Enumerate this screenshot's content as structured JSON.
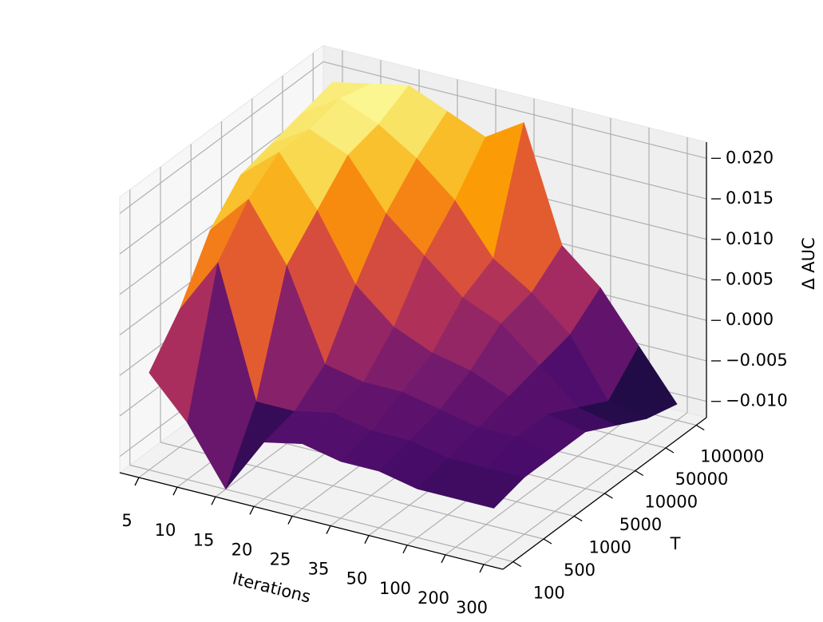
{
  "chart_data": {
    "type": "surface",
    "xlabel": "Iterations",
    "ylabel": "T",
    "zlabel": "Δ AUC",
    "categories": [
      "5",
      "10",
      "15",
      "20",
      "25",
      "35",
      "50",
      "100",
      "200",
      "300"
    ],
    "y_categories": [
      "100",
      "500",
      "1000",
      "5000",
      "10000",
      "50000",
      "100000"
    ],
    "values": [
      [
        0.0,
        -0.005,
        -0.012,
        -0.005,
        -0.004,
        -0.005,
        -0.005,
        -0.006,
        -0.006,
        -0.006
      ],
      [
        0.005,
        0.012,
        -0.004,
        -0.004,
        -0.003,
        -0.004,
        -0.004,
        -0.005,
        -0.005,
        -0.005
      ],
      [
        0.012,
        0.017,
        0.01,
        -0.001,
        -0.002,
        -0.002,
        -0.003,
        -0.004,
        -0.004,
        -0.005
      ],
      [
        0.016,
        0.02,
        0.014,
        0.006,
        0.002,
        0.0,
        -0.001,
        -0.003,
        -0.004,
        -0.005
      ],
      [
        0.017,
        0.02,
        0.018,
        0.012,
        0.008,
        0.004,
        0.002,
        -0.002,
        -0.006,
        -0.007
      ],
      [
        0.018,
        0.021,
        0.019,
        0.016,
        0.012,
        0.006,
        0.003,
        -0.001,
        -0.008,
        -0.009
      ],
      [
        0.019,
        0.02,
        0.021,
        0.019,
        0.017,
        0.02,
        0.006,
        0.002,
        -0.004,
        -0.01
      ]
    ],
    "zlim": [
      -0.012,
      0.022
    ],
    "zticks": [
      {
        "value": -0.01,
        "label": "−0.010"
      },
      {
        "value": -0.005,
        "label": "−0.005"
      },
      {
        "value": 0,
        "label": "0.000"
      },
      {
        "value": 0.005,
        "label": "0.005"
      },
      {
        "value": 0.01,
        "label": "0.010"
      },
      {
        "value": 0.015,
        "label": "0.015"
      },
      {
        "value": 0.02,
        "label": "0.020"
      }
    ],
    "colormap": "inferno",
    "grid": true
  }
}
